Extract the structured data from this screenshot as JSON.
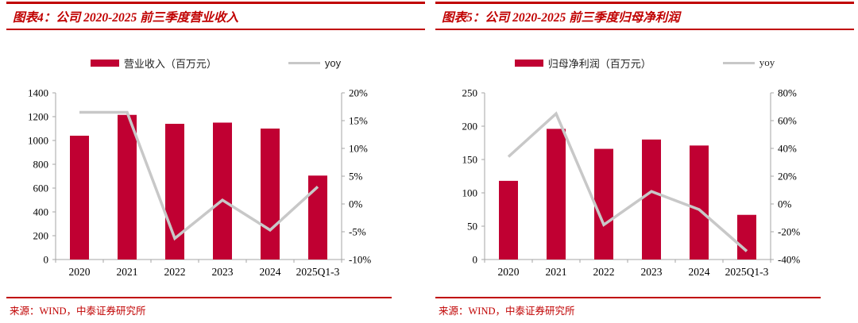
{
  "colors": {
    "background": "#FFFFFF",
    "accent_red": "#C00000",
    "bar": "#C00032",
    "yoy_line": "#C8C8C8",
    "axis": "#A6A6A6",
    "tick_text": "#000000"
  },
  "panels": [
    {
      "title": "图表4：公司 2020-2025 前三季度营业收入",
      "legend": {
        "bar_label": "营业收入（百万元）",
        "line_label": "yoy"
      },
      "source": "来源：WIND，中泰证券研究所"
    },
    {
      "title": "图表5：公司 2020-2025 前三季度归母净利润",
      "legend": {
        "bar_label": "归母净利润（百万元）",
        "line_label": "yoy"
      },
      "source": "来源：WIND，中泰证券研究所"
    }
  ],
  "chart_data": [
    {
      "type": "bar",
      "combo": "bar+line",
      "title": "公司 2020-2025 前三季度营业收入",
      "categories": [
        "2020",
        "2021",
        "2022",
        "2023",
        "2024",
        "2025Q1-3"
      ],
      "series": [
        {
          "name": "营业收入（百万元）",
          "kind": "bar",
          "axis": "left",
          "values": [
            1040,
            1215,
            1140,
            1150,
            1100,
            705
          ]
        },
        {
          "name": "yoy",
          "kind": "line",
          "axis": "right",
          "unit": "%",
          "values": [
            16.5,
            16.5,
            -6.2,
            0.7,
            -4.7,
            3.1
          ]
        }
      ],
      "left_axis": {
        "min": 0,
        "max": 1400,
        "step": 200,
        "ticks": [
          "0",
          "200",
          "400",
          "600",
          "800",
          "1000",
          "1200",
          "1400"
        ]
      },
      "right_axis": {
        "min": -10,
        "max": 20,
        "step": 5,
        "unit": "%",
        "ticks": [
          "-10%",
          "-5%",
          "0%",
          "5%",
          "10%",
          "15%",
          "20%"
        ]
      },
      "grid": false,
      "legend_position": "top"
    },
    {
      "type": "bar",
      "combo": "bar+line",
      "title": "公司 2020-2025 前三季度归母净利润",
      "categories": [
        "2020",
        "2021",
        "2022",
        "2023",
        "2024",
        "2025Q1-3"
      ],
      "series": [
        {
          "name": "归母净利润（百万元）",
          "kind": "bar",
          "axis": "left",
          "values": [
            118,
            196,
            166,
            180,
            171,
            67
          ]
        },
        {
          "name": "yoy",
          "kind": "line",
          "axis": "right",
          "unit": "%",
          "values": [
            34,
            65,
            -15,
            9,
            -4,
            -34
          ]
        }
      ],
      "left_axis": {
        "min": 0,
        "max": 250,
        "step": 50,
        "ticks": [
          "0",
          "50",
          "100",
          "150",
          "200",
          "250"
        ]
      },
      "right_axis": {
        "min": -40,
        "max": 80,
        "step": 20,
        "unit": "%",
        "ticks": [
          "-40%",
          "-20%",
          "0%",
          "20%",
          "40%",
          "60%",
          "80%"
        ]
      },
      "grid": false,
      "legend_position": "top"
    }
  ]
}
